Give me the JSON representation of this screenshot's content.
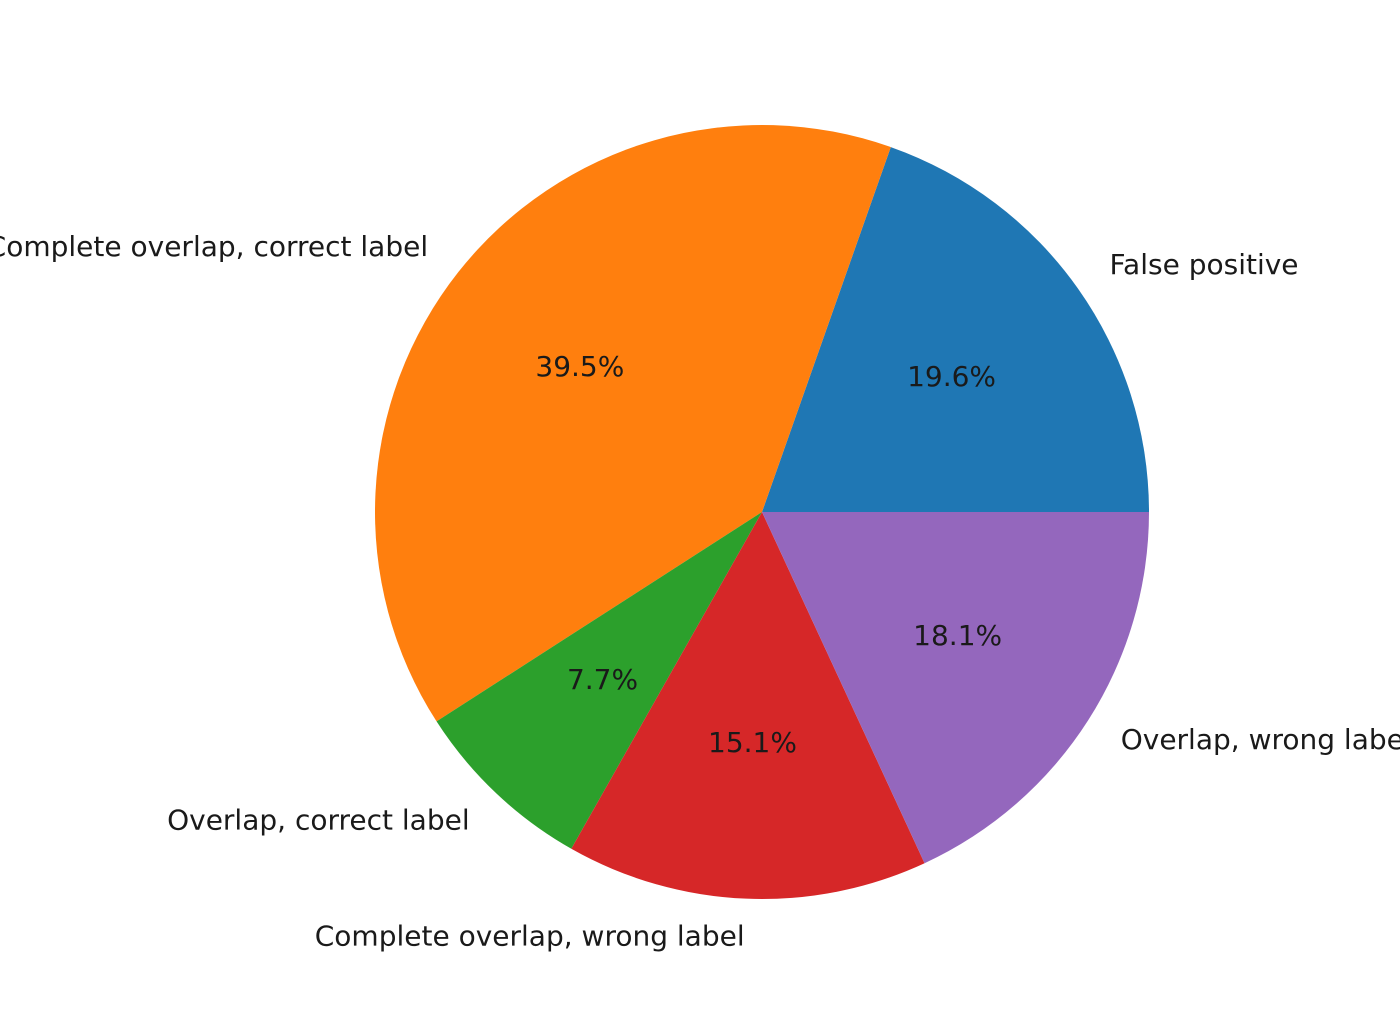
{
  "chart_data": {
    "type": "pie",
    "title": "",
    "legend": "none",
    "start_angle_deg": 0,
    "direction": "counterclockwise",
    "slices": [
      {
        "name": "False positive",
        "value": 19.6,
        "pct_label": "19.6%",
        "color": "#1f77b4"
      },
      {
        "name": "Complete overlap, correct label",
        "value": 39.5,
        "pct_label": "39.5%",
        "color": "#ff7f0e"
      },
      {
        "name": "Overlap, correct label",
        "value": 7.7,
        "pct_label": "7.7%",
        "color": "#2ca02c"
      },
      {
        "name": "Complete overlap, wrong label",
        "value": 15.1,
        "pct_label": "15.1%",
        "color": "#d62728"
      },
      {
        "name": "Overlap, wrong label",
        "value": 18.1,
        "pct_label": "18.1%",
        "color": "#9467bd"
      }
    ]
  }
}
